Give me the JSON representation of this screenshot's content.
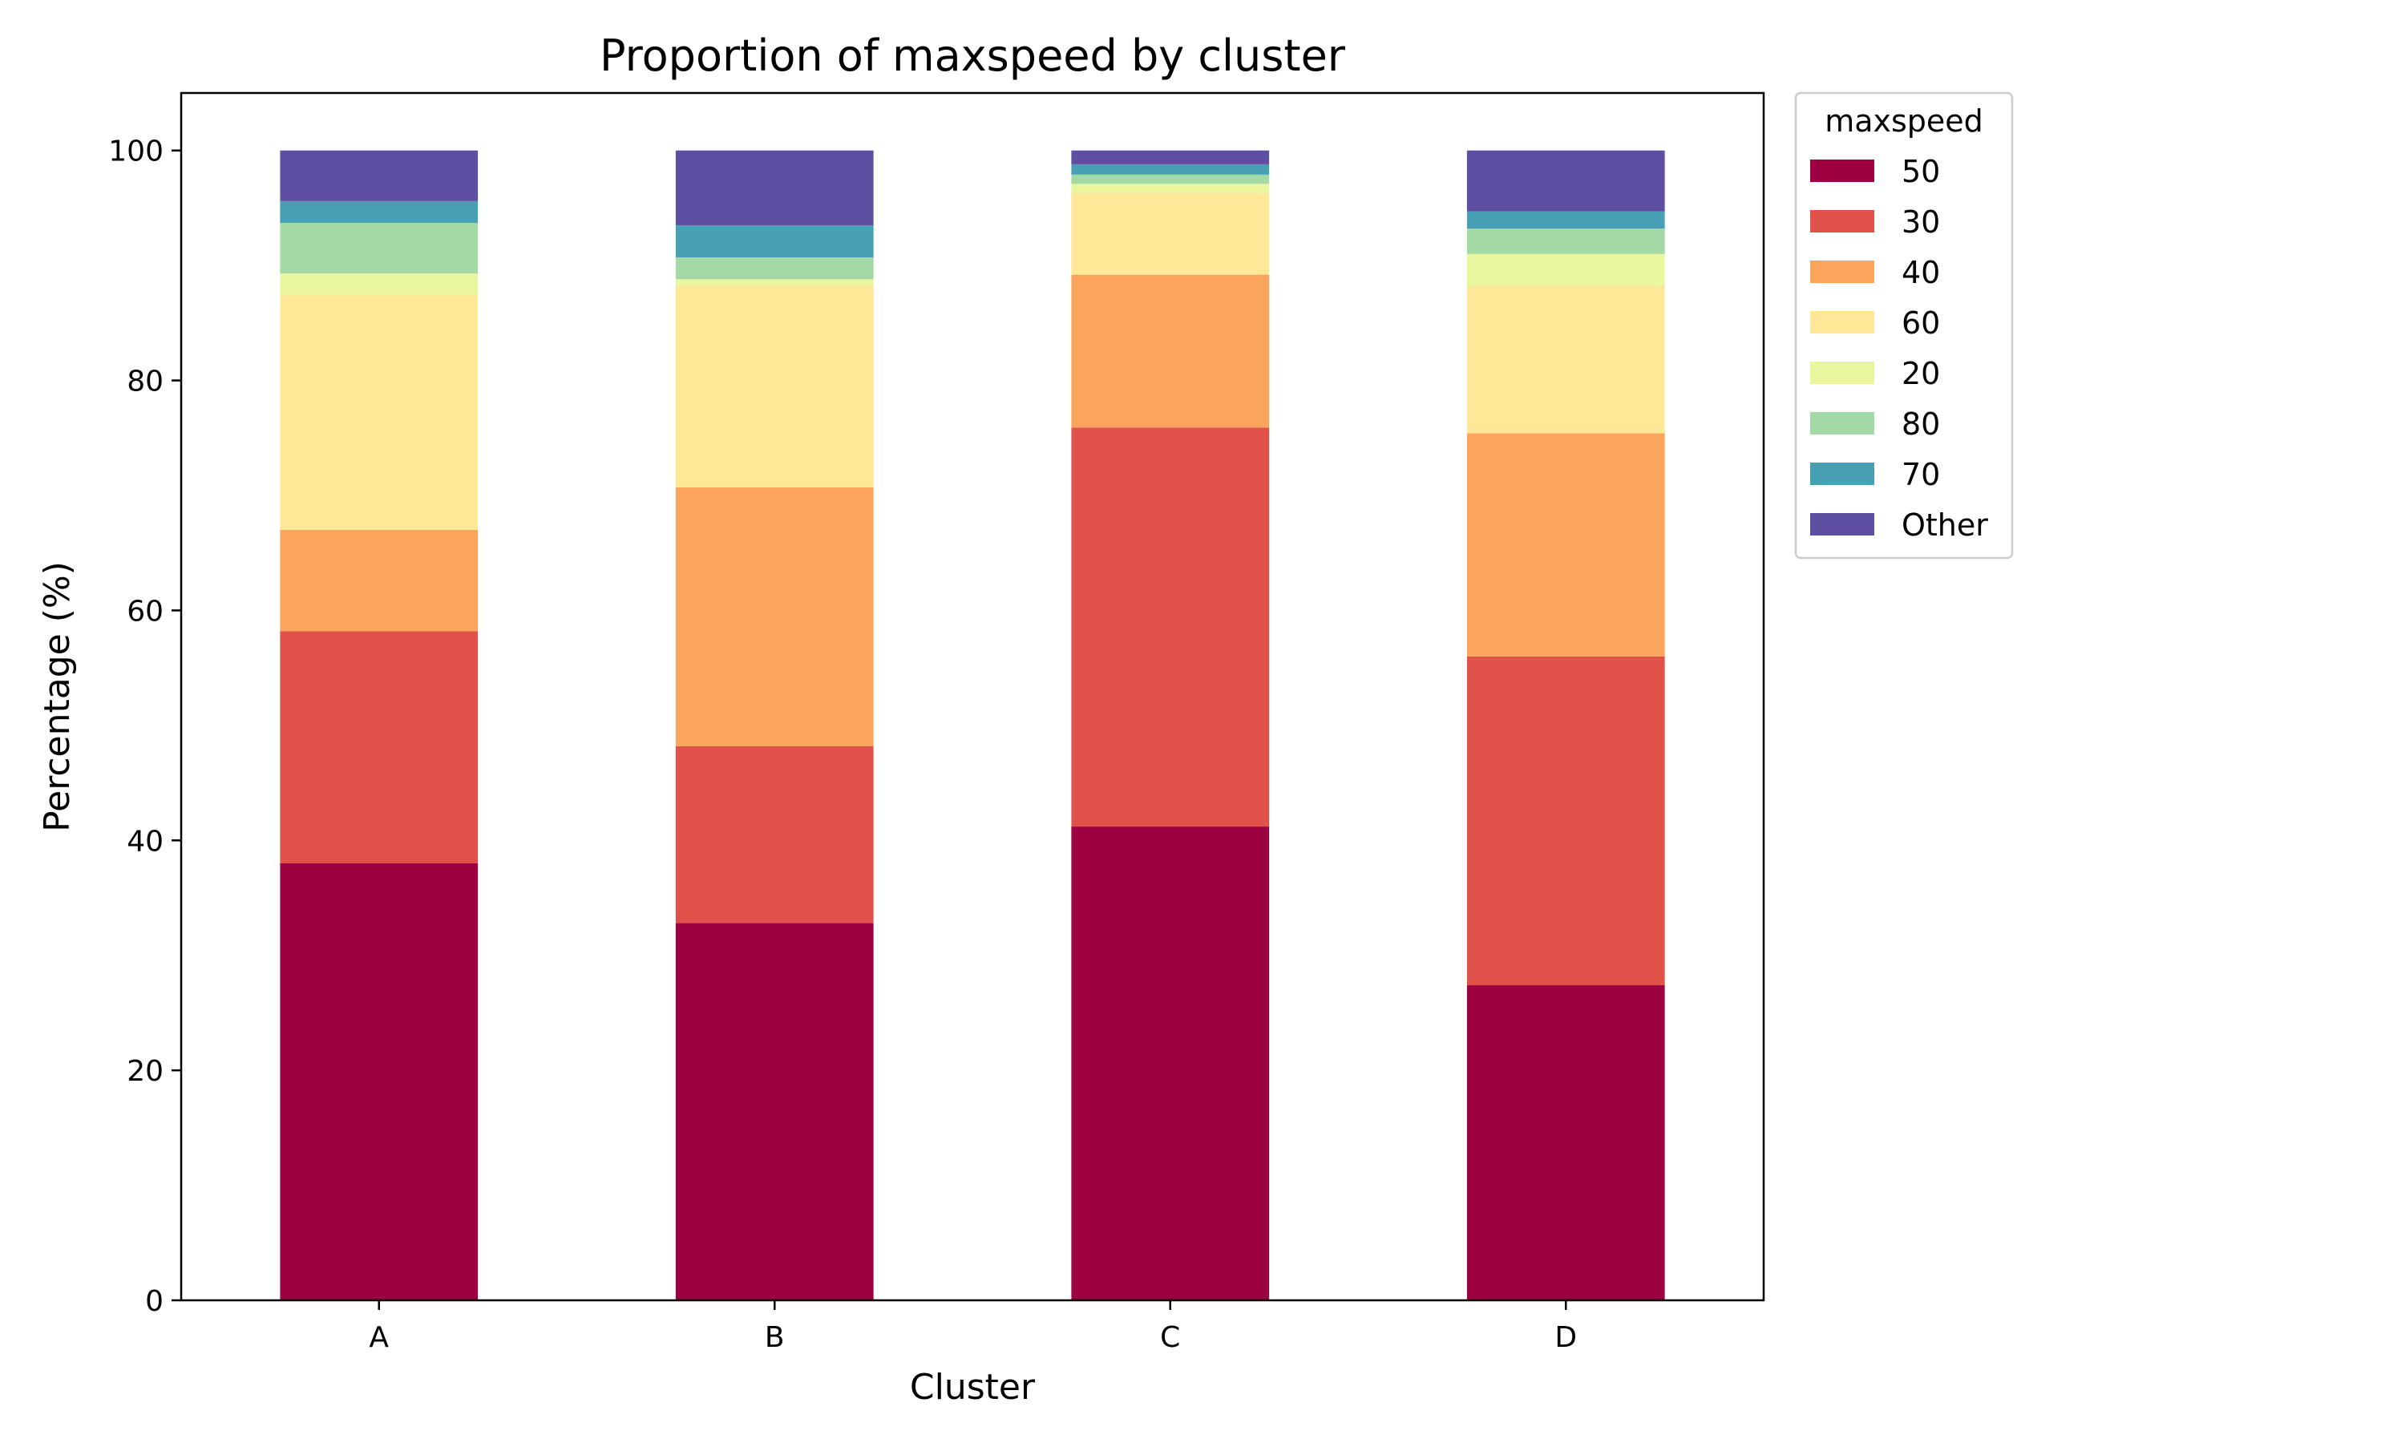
{
  "chart_data": {
    "type": "bar",
    "stacked": true,
    "title": "Proportion of maxspeed by cluster",
    "xlabel": "Cluster",
    "ylabel": "Percentage (%)",
    "categories": [
      "A",
      "B",
      "C",
      "D"
    ],
    "ylim": [
      0,
      105
    ],
    "yticks": [
      0,
      20,
      40,
      60,
      80,
      100
    ],
    "grid": false,
    "legend": {
      "title": "maxspeed",
      "placement": "outside-right-top"
    },
    "series": [
      {
        "name": "50",
        "color": "#9e0142",
        "values": [
          38.0,
          32.8,
          41.2,
          27.4
        ]
      },
      {
        "name": "30",
        "color": "#e1524a",
        "values": [
          20.2,
          15.4,
          34.7,
          28.6
        ]
      },
      {
        "name": "40",
        "color": "#fba45c",
        "values": [
          8.8,
          22.5,
          13.3,
          19.4
        ]
      },
      {
        "name": "60",
        "color": "#fee797",
        "values": [
          20.4,
          17.5,
          7.1,
          12.8
        ]
      },
      {
        "name": "20",
        "color": "#eaf69e",
        "values": [
          1.9,
          0.6,
          0.8,
          2.8
        ]
      },
      {
        "name": "80",
        "color": "#a2d9a4",
        "values": [
          4.4,
          1.9,
          0.8,
          2.2
        ]
      },
      {
        "name": "70",
        "color": "#47a0b3",
        "values": [
          1.9,
          2.8,
          0.9,
          1.5
        ]
      },
      {
        "name": "Other",
        "color": "#5e4fa2",
        "values": [
          4.4,
          6.5,
          1.2,
          5.3
        ]
      }
    ]
  }
}
